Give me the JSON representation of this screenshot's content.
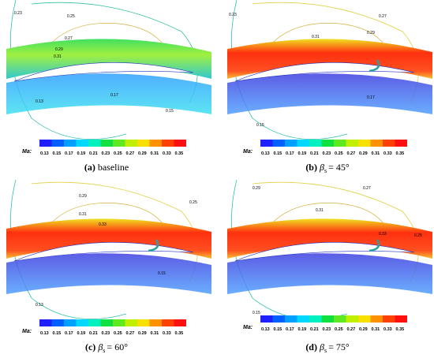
{
  "colorbar": {
    "title": "Ma:",
    "ticks": [
      0.13,
      0.15,
      0.17,
      0.19,
      0.21,
      0.23,
      0.25,
      0.27,
      0.29,
      0.31,
      0.33,
      0.35
    ]
  },
  "panels": [
    {
      "caption": {
        "label": "(a)",
        "text": "baseline"
      },
      "contour_labels": [
        "0.23",
        "0.25",
        "0.27",
        "0.29",
        "0.31",
        "0.17",
        "0.13",
        "0.15"
      ]
    },
    {
      "caption": {
        "label": "(b)",
        "symbol": "β",
        "subscript": "s",
        "text": "= 45°"
      },
      "contour_labels": [
        "0.23",
        "0.27",
        "0.29",
        "0.31",
        "0.15",
        "0.17"
      ]
    },
    {
      "caption": {
        "label": "(c)",
        "symbol": "β",
        "subscript": "s",
        "text": "= 60°"
      },
      "contour_labels": [
        "0.29",
        "0.31",
        "0.33",
        "0.25",
        "0.13",
        "0.15"
      ]
    },
    {
      "caption": {
        "label": "(d)",
        "symbol": "β",
        "subscript": "s",
        "text": "= 75°"
      },
      "contour_labels": [
        "0.29",
        "0.27",
        "0.31",
        "0.33",
        "0.25",
        "0.15"
      ]
    }
  ]
}
